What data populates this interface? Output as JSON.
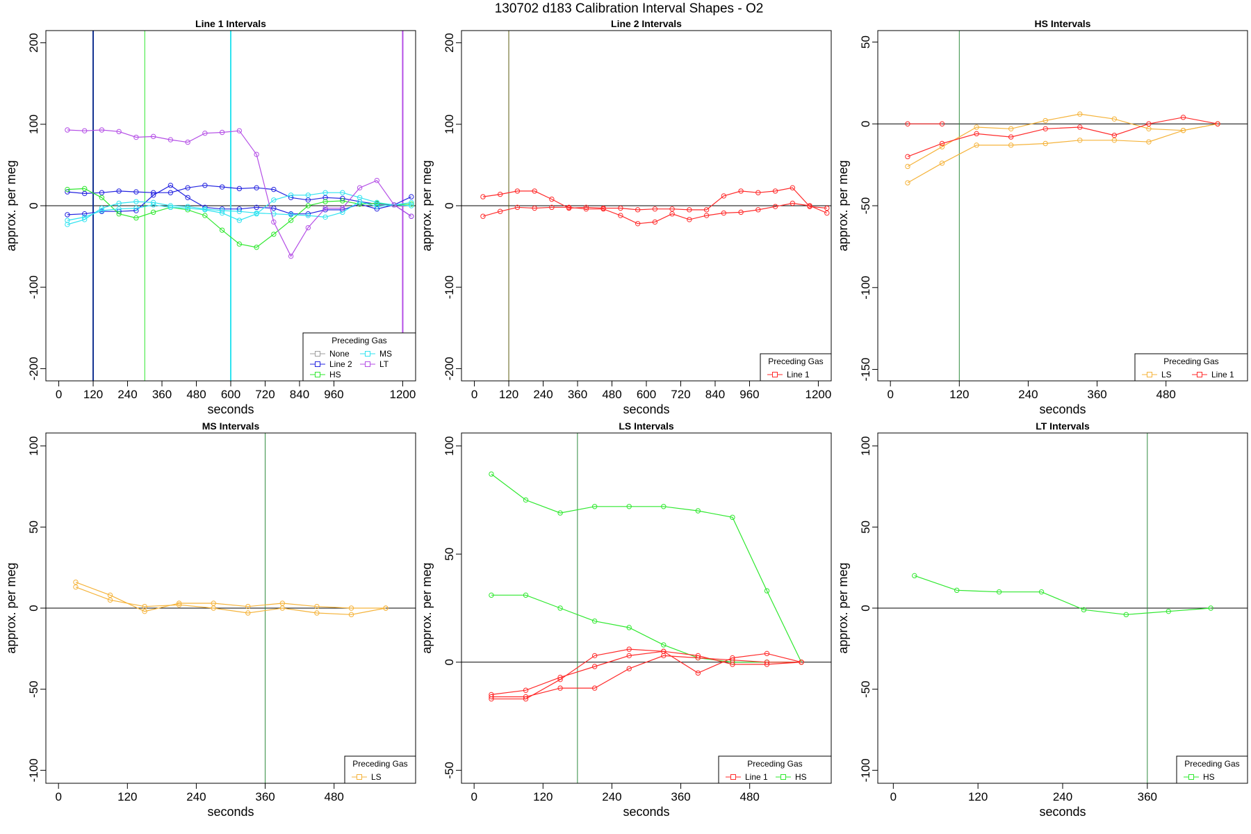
{
  "page_title": "130702   d183   Calibration Interval Shapes - O2",
  "colors": {
    "None": "#9e9e9e",
    "Line 1": "#ff2a2a",
    "Line 2": "#2323e0",
    "HS": "#2ee82e",
    "MS": "#2fe3f0",
    "LT": "#b44ee6",
    "LS": "#f5b33a",
    "vline_dark": "#0f2f8f",
    "vline_green": "#2e8b3e",
    "vline_olive": "#5a5a10"
  },
  "chart_data": [
    {
      "type": "line",
      "title": "Line 1 Intervals",
      "xlabel": "seconds",
      "ylabel": "approx. per meg",
      "xlim": [
        -45,
        1245
      ],
      "ylim": [
        -215,
        215
      ],
      "xticks": [
        0,
        120,
        240,
        360,
        480,
        600,
        720,
        840,
        960,
        1200
      ],
      "yticks": [
        -200,
        -100,
        0,
        100,
        200
      ],
      "hline": 0,
      "vlines": [
        {
          "x": 120,
          "color": "#0f2f8f",
          "width": 2
        },
        {
          "x": 300,
          "color": "#2ee82e",
          "width": 1
        },
        {
          "x": 600,
          "color": "#2fe3f0",
          "width": 2
        },
        {
          "x": 1200,
          "color": "#b44ee6",
          "width": 2
        }
      ],
      "legend": {
        "title": "Preceding Gas",
        "position": "bottom-right",
        "columns": 2,
        "entries": [
          "None",
          "MS",
          "Line 2",
          "LT",
          "HS"
        ]
      },
      "series": [
        {
          "name": "Line 2",
          "color": "#2323e0",
          "x": [
            30,
            90,
            150,
            210,
            270,
            330,
            390,
            450,
            510,
            570,
            630,
            690,
            750,
            810,
            870,
            930,
            990,
            1050,
            1110,
            1170,
            1230
          ],
          "y": [
            17,
            15,
            16,
            18,
            17,
            16,
            16,
            22,
            25,
            23,
            21,
            22,
            20,
            10,
            7,
            10,
            9,
            5,
            2,
            1,
            11
          ]
        },
        {
          "name": "Line 2",
          "color": "#2323e0",
          "x": [
            30,
            90,
            150,
            210,
            270,
            330,
            390,
            450,
            510,
            570,
            630,
            690,
            750,
            810,
            870,
            930,
            990,
            1050,
            1110,
            1170,
            1230
          ],
          "y": [
            -11,
            -10,
            -7,
            -7,
            -6,
            13,
            25,
            10,
            -2,
            -4,
            -4,
            -2,
            -3,
            -10,
            -10,
            -5,
            -5,
            2,
            -4,
            1,
            -13
          ]
        },
        {
          "name": "HS",
          "color": "#2ee82e",
          "x": [
            30,
            90,
            150,
            210,
            270,
            330,
            390,
            450,
            510,
            570,
            630,
            690,
            750,
            810,
            870,
            930,
            990,
            1050,
            1110,
            1170,
            1230
          ],
          "y": [
            20,
            21,
            10,
            -10,
            -15,
            -8,
            -2,
            -5,
            -12,
            -30,
            -47,
            -51,
            -35,
            -18,
            0,
            5,
            6,
            2,
            3,
            1,
            2
          ]
        },
        {
          "name": "MS",
          "color": "#2fe3f0",
          "x": [
            30,
            90,
            150,
            210,
            270,
            330,
            390,
            450,
            510,
            570,
            630,
            690,
            750,
            810,
            870,
            930,
            990,
            1050,
            1110,
            1170,
            1230
          ],
          "y": [
            -18,
            -14,
            -6,
            -4,
            -3,
            1,
            -2,
            -3,
            -5,
            -9,
            -18,
            -10,
            7,
            13,
            13,
            16,
            16,
            10,
            4,
            1,
            0
          ]
        },
        {
          "name": "MS",
          "color": "#2fe3f0",
          "x": [
            30,
            90,
            150,
            210,
            270,
            330,
            390,
            450,
            510,
            570,
            630,
            690,
            750,
            810,
            870,
            930,
            990,
            1050,
            1110,
            1170,
            1230
          ],
          "y": [
            -23,
            -17,
            -3,
            3,
            5,
            4,
            0,
            -1,
            -4,
            -6,
            -7,
            -9,
            -10,
            -11,
            -12,
            -14,
            -8,
            5,
            -1,
            1,
            4
          ]
        },
        {
          "name": "LT",
          "color": "#b44ee6",
          "x": [
            30,
            90,
            150,
            210,
            270,
            330,
            390,
            450,
            510,
            570,
            630,
            690,
            750,
            810,
            870,
            930,
            990,
            1050,
            1110,
            1170,
            1230
          ],
          "y": [
            93,
            92,
            93,
            91,
            84,
            85,
            81,
            78,
            89,
            90,
            92,
            63,
            -20,
            -62,
            -27,
            -3,
            -3,
            22,
            31,
            1,
            -13
          ]
        }
      ]
    },
    {
      "type": "line",
      "title": "Line 2 Intervals",
      "xlabel": "seconds",
      "ylabel": "approx. per meg",
      "xlim": [
        -45,
        1245
      ],
      "ylim": [
        -215,
        215
      ],
      "xticks": [
        0,
        120,
        240,
        360,
        480,
        600,
        720,
        840,
        960,
        1200
      ],
      "yticks": [
        -200,
        -100,
        0,
        100,
        200
      ],
      "hline": 0,
      "vlines": [
        {
          "x": 120,
          "color": "#5a5a10",
          "width": 1
        }
      ],
      "legend": {
        "title": "Preceding Gas",
        "position": "bottom-right",
        "columns": 1,
        "entries": [
          "Line 1"
        ]
      },
      "series": [
        {
          "name": "Line 1",
          "color": "#ff2a2a",
          "x": [
            30,
            90,
            150,
            210,
            270,
            330,
            390,
            450,
            510,
            570,
            630,
            690,
            750,
            810,
            870,
            930,
            990,
            1050,
            1110,
            1170,
            1230
          ],
          "y": [
            11,
            14,
            18,
            18,
            8,
            -3,
            -2,
            -3,
            -3,
            -5,
            -4,
            -4,
            -5,
            -5,
            12,
            18,
            16,
            18,
            22,
            -1,
            -3
          ]
        },
        {
          "name": "Line 1",
          "color": "#ff2a2a",
          "x": [
            30,
            90,
            150,
            210,
            270,
            330,
            390,
            450,
            510,
            570,
            630,
            690,
            750,
            810,
            870,
            930,
            990,
            1050,
            1110,
            1170,
            1230
          ],
          "y": [
            -13,
            -7,
            -2,
            -3,
            -2,
            -2,
            -4,
            -4,
            -12,
            -22,
            -20,
            -10,
            -17,
            -12,
            -9,
            -8,
            -5,
            -1,
            3,
            0,
            -9
          ]
        }
      ]
    },
    {
      "type": "line",
      "title": "HS Intervals",
      "xlabel": "seconds",
      "ylabel": "approx. per meg",
      "xlim": [
        -22,
        622
      ],
      "ylim": [
        -157,
        57
      ],
      "xticks": [
        0,
        120,
        240,
        360,
        480
      ],
      "yticks": [
        -150,
        -100,
        -50,
        0,
        50
      ],
      "hline": 0,
      "vlines": [
        {
          "x": 120,
          "color": "#2e8b3e",
          "width": 1
        }
      ],
      "legend": {
        "title": "Preceding Gas",
        "position": "bottom-right",
        "columns": 2,
        "entries": [
          "LS",
          "Line 1"
        ]
      },
      "series": [
        {
          "name": "LS",
          "color": "#f5b33a",
          "x": [
            30,
            90,
            150,
            210,
            270,
            330,
            390,
            450,
            510,
            570
          ],
          "y": [
            -26,
            -14,
            -2,
            -3,
            2,
            6,
            3,
            -3,
            -4,
            0
          ]
        },
        {
          "name": "LS",
          "color": "#f5b33a",
          "x": [
            30,
            90,
            150,
            210,
            270,
            330,
            390,
            450,
            510,
            570
          ],
          "y": [
            -36,
            -24,
            -13,
            -13,
            -12,
            -10,
            -10,
            -11,
            -4,
            0
          ]
        },
        {
          "name": "Line 1",
          "color": "#ff2a2a",
          "x": [
            30,
            90,
            150,
            210,
            270,
            330,
            390,
            450,
            510,
            570
          ],
          "y": [
            -20,
            -12,
            -6,
            -8,
            -3,
            -2,
            -7,
            0,
            4,
            0
          ]
        },
        {
          "name": "Line 1",
          "color": "#ff2a2a",
          "x": [
            30,
            90
          ],
          "y": [
            0,
            0
          ]
        }
      ]
    },
    {
      "type": "line",
      "title": "MS Intervals",
      "xlabel": "seconds",
      "ylabel": "approx. per meg",
      "xlim": [
        -22,
        622
      ],
      "ylim": [
        -108,
        108
      ],
      "xticks": [
        0,
        120,
        240,
        360,
        480
      ],
      "yticks": [
        -100,
        -50,
        0,
        50,
        100
      ],
      "hline": 0,
      "vlines": [
        {
          "x": 360,
          "color": "#2e8b3e",
          "width": 1
        }
      ],
      "legend": {
        "title": "Preceding Gas",
        "position": "bottom-right",
        "columns": 1,
        "entries": [
          "LS"
        ]
      },
      "series": [
        {
          "name": "LS",
          "color": "#f5b33a",
          "x": [
            30,
            90,
            150,
            210,
            270,
            330,
            390,
            450,
            510,
            570
          ],
          "y": [
            16,
            8,
            -2,
            3,
            3,
            1,
            3,
            1,
            0,
            0
          ]
        },
        {
          "name": "LS",
          "color": "#f5b33a",
          "x": [
            30,
            90,
            150,
            210,
            270,
            330,
            390,
            450,
            510,
            570
          ],
          "y": [
            13,
            5,
            1,
            2,
            0,
            -3,
            0,
            -3,
            -4,
            0
          ]
        }
      ]
    },
    {
      "type": "line",
      "title": "LS Intervals",
      "xlabel": "seconds",
      "ylabel": "approx. per meg",
      "xlim": [
        -22,
        622
      ],
      "ylim": [
        -56,
        106
      ],
      "xticks": [
        0,
        120,
        240,
        360,
        480
      ],
      "yticks": [
        -50,
        0,
        50,
        100
      ],
      "hline": 0,
      "vlines": [
        {
          "x": 180,
          "color": "#2e8b3e",
          "width": 1
        }
      ],
      "legend": {
        "title": "Preceding Gas",
        "position": "bottom-right",
        "columns": 2,
        "entries": [
          "Line 1",
          "HS"
        ]
      },
      "series": [
        {
          "name": "HS",
          "color": "#2ee82e",
          "x": [
            30,
            90,
            150,
            210,
            270,
            330,
            390,
            450,
            510,
            570
          ],
          "y": [
            87,
            75,
            69,
            72,
            72,
            72,
            70,
            67,
            33,
            0
          ]
        },
        {
          "name": "HS",
          "color": "#2ee82e",
          "x": [
            30,
            90,
            150,
            210,
            270,
            330,
            390,
            450,
            510,
            570
          ],
          "y": [
            31,
            31,
            25,
            19,
            16,
            8,
            2,
            0,
            0,
            0
          ]
        },
        {
          "name": "Line 1",
          "color": "#ff2a2a",
          "x": [
            30,
            90,
            150,
            210,
            270,
            330,
            390,
            450,
            510,
            570
          ],
          "y": [
            -16,
            -16,
            -12,
            -12,
            -3,
            3,
            2,
            1,
            0,
            0
          ]
        },
        {
          "name": "Line 1",
          "color": "#ff2a2a",
          "x": [
            30,
            90,
            150,
            210,
            270,
            330,
            390,
            450,
            510,
            570
          ],
          "y": [
            -17,
            -17,
            -8,
            3,
            6,
            5,
            -5,
            2,
            4,
            0
          ]
        },
        {
          "name": "Line 1",
          "color": "#ff2a2a",
          "x": [
            30,
            90,
            150,
            210,
            270,
            330,
            390,
            450,
            510,
            570
          ],
          "y": [
            -15,
            -13,
            -7,
            -2,
            3,
            5,
            3,
            -1,
            -1,
            0
          ]
        }
      ]
    },
    {
      "type": "line",
      "title": "LT Intervals",
      "xlabel": "seconds",
      "ylabel": "approx. per meg",
      "xlim": [
        -22,
        502
      ],
      "ylim": [
        -108,
        108
      ],
      "xticks": [
        0,
        120,
        240,
        360
      ],
      "yticks": [
        -100,
        -50,
        0,
        50,
        100
      ],
      "hline": 0,
      "vlines": [
        {
          "x": 360,
          "color": "#2e8b3e",
          "width": 1
        }
      ],
      "legend": {
        "title": "Preceding Gas",
        "position": "bottom-right",
        "columns": 1,
        "entries": [
          "HS"
        ]
      },
      "series": [
        {
          "name": "HS",
          "color": "#2ee82e",
          "x": [
            30,
            90,
            150,
            210,
            270,
            330,
            390,
            450
          ],
          "y": [
            20,
            11,
            10,
            10,
            -1,
            -4,
            -2,
            0
          ]
        }
      ]
    }
  ]
}
